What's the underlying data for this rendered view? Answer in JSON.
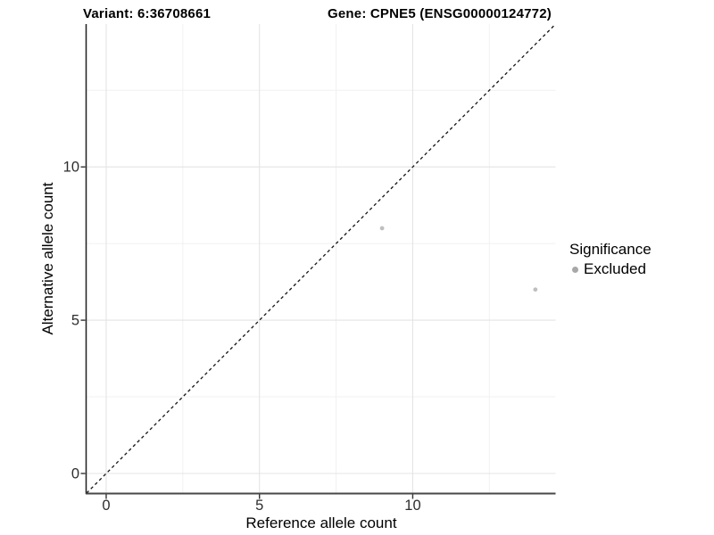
{
  "header": {
    "variant_title": "Variant: 6:36708661",
    "gene_title": "Gene: CPNE5 (ENSG00000124772)"
  },
  "chart_data": {
    "type": "scatter",
    "title": "Variant: 6:36708661   Gene: CPNE5 (ENSG00000124772)",
    "xlabel": "Reference allele count",
    "ylabel": "Alternative allele count",
    "xlim": [
      -0.64,
      14.66
    ],
    "ylim": [
      -0.64,
      14.66
    ],
    "x_ticks": [
      0,
      5,
      10
    ],
    "y_ticks": [
      0,
      5,
      10
    ],
    "x_minor_ticks": [
      2.5,
      7.5,
      12.5
    ],
    "y_minor_ticks": [
      2.5,
      7.5,
      12.5
    ],
    "grid": true,
    "identity_line": {
      "style": "dashed",
      "slope": 1,
      "intercept": 0
    },
    "series": [
      {
        "name": "Excluded",
        "color": "#bfbfbf",
        "points": [
          {
            "x": 9,
            "y": 8
          },
          {
            "x": 14,
            "y": 6
          }
        ]
      }
    ],
    "legend": {
      "title": "Significance",
      "position": "right",
      "items": [
        {
          "label": "Excluded",
          "color": "#a8a8a8"
        }
      ]
    },
    "colors": {
      "grid_major": "#e4e4e4",
      "grid_minor": "#f1f1f1",
      "axis_line_left": "#1f1f1f",
      "axis_line_bottom": "#474747",
      "tick_mark": "#333333",
      "tick_label": "#2e2e2e",
      "identity_line": "#141414",
      "point": "#bfbfbf",
      "background": "#ffffff"
    }
  }
}
